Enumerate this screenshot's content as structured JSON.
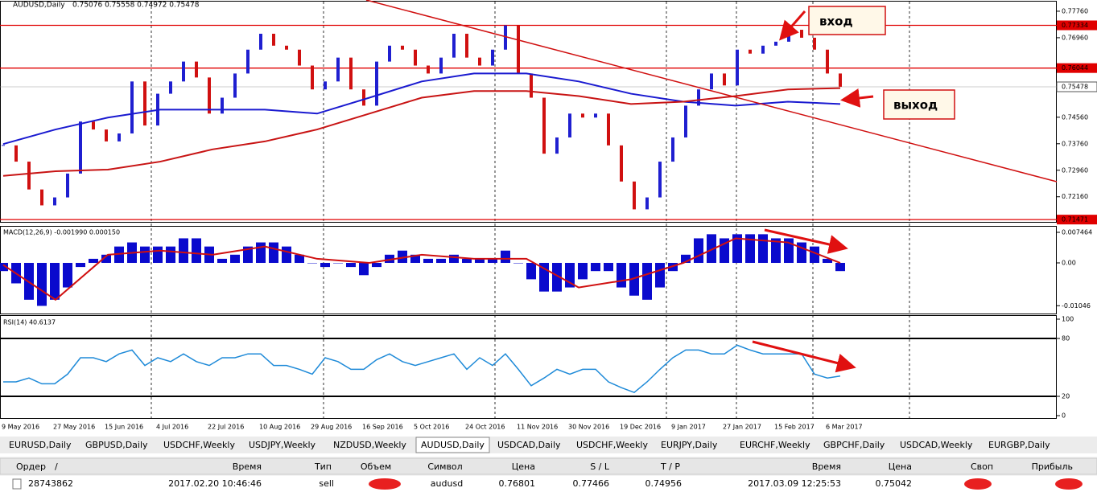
{
  "chart_data": [
    {
      "type": "candlestick",
      "title": "AUDUSD,Daily",
      "subtitle": "0.75076 0.75558 0.74972 0.75478",
      "up_color": "#1f1fd0",
      "down_color": "#d01010",
      "close": [
        0.7371,
        0.7322,
        0.7238,
        0.719,
        0.7214,
        0.7286,
        0.7443,
        0.7419,
        0.7383,
        0.7407,
        0.7564,
        0.7431,
        0.7527,
        0.7564,
        0.7624,
        0.7576,
        0.7467,
        0.7515,
        0.7588,
        0.766,
        0.7708,
        0.7672,
        0.766,
        0.7612,
        0.754,
        0.7564,
        0.7636,
        0.754,
        0.7491,
        0.7624,
        0.7672,
        0.766,
        0.7612,
        0.7588,
        0.7636,
        0.7708,
        0.7636,
        0.7612,
        0.766,
        0.7733,
        0.7588,
        0.7515,
        0.7346,
        0.7395,
        0.7467,
        0.7455,
        0.7467,
        0.7371,
        0.7262,
        0.7178,
        0.7214,
        0.7322,
        0.7395,
        0.7491,
        0.754,
        0.7588,
        0.7552,
        0.766,
        0.7648,
        0.7672,
        0.7684,
        0.772,
        0.7696,
        0.766,
        0.7588,
        0.7548
      ],
      "series": [
        {
          "color": "#1a1ad0",
          "values": [
            0.7375,
            0.7419,
            0.7455,
            0.7479,
            0.7479,
            0.7479,
            0.7467,
            0.7515,
            0.7564,
            0.7588,
            0.7588,
            0.7564,
            0.7527,
            0.7503,
            0.7491,
            0.7503,
            0.7496
          ]
        },
        {
          "color": "#c81414",
          "values": [
            0.7279,
            0.7293,
            0.7298,
            0.7322,
            0.7359,
            0.7383,
            0.7419,
            0.7467,
            0.7515,
            0.7535,
            0.7535,
            0.752,
            0.7496,
            0.7503,
            0.752,
            0.754,
            0.7544
          ]
        }
      ],
      "ylim": [
        0.7145,
        0.7805
      ],
      "yticks": [
        {
          "value": 0.7776,
          "label": "0.77760"
        },
        {
          "value": 0.7696,
          "label": "0.76960"
        },
        {
          "value": 0.7456,
          "label": "0.74560"
        },
        {
          "value": 0.7376,
          "label": "0.73760"
        },
        {
          "value": 0.7296,
          "label": "0.72960"
        },
        {
          "value": 0.7216,
          "label": "0.72160"
        }
      ],
      "levels": [
        0.77334,
        0.76044,
        0.71471
      ],
      "level_color": "#e00000",
      "last": 0.75478,
      "annotations": [
        "вход",
        "выход"
      ]
    },
    {
      "type": "bar",
      "title": "MACD(12,26,9) -0.001990 0.000150",
      "color": "#0a0acd",
      "values": [
        -0.002,
        -0.005,
        -0.009,
        -0.0105,
        -0.009,
        -0.006,
        -0.001,
        0.001,
        0.002,
        0.004,
        0.005,
        0.004,
        0.004,
        0.004,
        0.006,
        0.006,
        0.004,
        0.001,
        0.002,
        0.004,
        0.005,
        0.005,
        0.004,
        0.002,
        0.0,
        -0.001,
        0.0,
        -0.001,
        -0.003,
        -0.001,
        0.002,
        0.003,
        0.002,
        0.001,
        0.001,
        0.002,
        0.001,
        0.001,
        0.001,
        0.003,
        0.0,
        -0.004,
        -0.007,
        -0.007,
        -0.006,
        -0.004,
        -0.002,
        -0.002,
        -0.006,
        -0.008,
        -0.009,
        -0.006,
        -0.002,
        0.002,
        0.006,
        0.007,
        0.006,
        0.007,
        0.007,
        0.007,
        0.006,
        0.006,
        0.005,
        0.004,
        0.001,
        -0.002
      ],
      "series": [
        {
          "color": "#d01010",
          "values": [
            -0.0005,
            -0.009,
            0.002,
            0.003,
            0.002,
            0.004,
            0.001,
            0.0,
            0.002,
            0.001,
            0.001,
            -0.006,
            -0.004,
            0.0,
            0.006,
            0.005,
            0.0
          ]
        }
      ],
      "ylim": [
        -0.01237,
        0.00884
      ],
      "yticks": [
        0.007464,
        {
          "value": 0,
          "label": "0.00"
        },
        -0.01046
      ]
    },
    {
      "type": "line",
      "title": "RSI(14) 40.6137",
      "color": "#1e8ad8",
      "values": [
        35,
        35,
        39,
        33,
        33,
        43,
        60,
        60,
        56,
        64,
        68,
        52,
        60,
        56,
        64,
        56,
        52,
        60,
        60,
        64,
        64,
        52,
        52,
        48,
        43,
        60,
        56,
        48,
        48,
        58,
        64,
        56,
        52,
        56,
        60,
        64,
        48,
        60,
        52,
        64,
        48,
        31,
        39,
        48,
        43,
        48,
        48,
        35,
        29,
        24,
        35,
        48,
        60,
        68,
        68,
        64,
        64,
        73,
        68,
        64,
        64,
        64,
        64,
        43,
        39,
        41
      ],
      "ylim": [
        0,
        100
      ],
      "yticks": [
        100,
        80,
        20,
        0
      ],
      "level_lines": [
        80,
        20
      ]
    }
  ],
  "time_axis": [
    "9 May 2016",
    "27 May 2016",
    "15 Jun 2016",
    "4 Jul 2016",
    "22 Jul 2016",
    "10 Aug 2016",
    "29 Aug 2016",
    "16 Sep 2016",
    "5 Oct 2016",
    "24 Oct 2016",
    "11 Nov 2016",
    "30 Nov 2016",
    "19 Dec 2016",
    "9 Jan 2017",
    "27 Jan 2017",
    "15 Feb 2017",
    "6 Mar 2017"
  ],
  "tabs": {
    "items": [
      "EURUSD,Daily",
      "GBPUSD,Daily",
      "USDCHF,Weekly",
      "USDJPY,Weekly",
      "NZDUSD,Weekly",
      "AUDUSD,Daily",
      "USDCAD,Daily",
      "USDCHF,Weekly",
      "EURJPY,Daily",
      "EURCHF,Weekly",
      "GBPCHF,Daily",
      "USDCAD,Weekly",
      "EURGBP,Daily"
    ],
    "active": 5
  },
  "orders": {
    "sort_indicator": "/",
    "header": [
      "Ордер",
      "Время",
      "Тип",
      "Объем",
      "Символ",
      "Цена",
      "S / L",
      "T / P",
      "Время",
      "Цена",
      "Своп",
      "Прибыль"
    ],
    "rows": [
      [
        "28743862",
        "2017.02.20 10:46:46",
        "sell",
        null,
        "audusd",
        "0.76801",
        "0.77466",
        "0.74956",
        "2017.03.09 12:25:53",
        "0.75042",
        null,
        null
      ]
    ]
  }
}
